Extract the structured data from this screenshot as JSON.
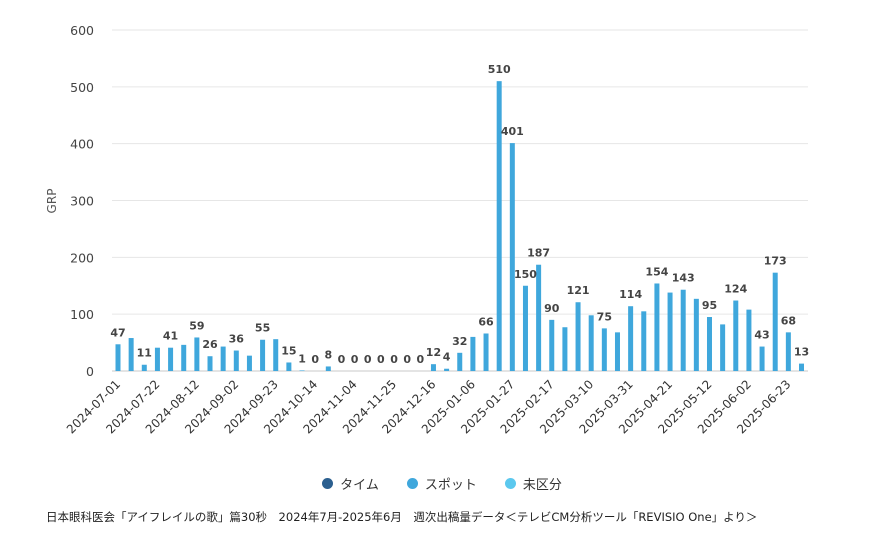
{
  "chart_data": {
    "type": "bar",
    "ylabel": "GRP",
    "ylim": [
      0,
      600
    ],
    "yticks": [
      0,
      100,
      200,
      300,
      400,
      500,
      600
    ],
    "categories": [
      "2024-07-01",
      "2024-07-08",
      "2024-07-15",
      "2024-07-22",
      "2024-07-29",
      "2024-08-05",
      "2024-08-12",
      "2024-08-19",
      "2024-08-26",
      "2024-09-02",
      "2024-09-09",
      "2024-09-16",
      "2024-09-23",
      "2024-09-30",
      "2024-10-07",
      "2024-10-14",
      "2024-10-21",
      "2024-10-28",
      "2024-11-04",
      "2024-11-11",
      "2024-11-18",
      "2024-11-25",
      "2024-12-02",
      "2024-12-09",
      "2024-12-16",
      "2024-12-23",
      "2024-12-30",
      "2025-01-06",
      "2025-01-13",
      "2025-01-20",
      "2025-01-27",
      "2025-02-03",
      "2025-02-10",
      "2025-02-17",
      "2025-02-24",
      "2025-03-03",
      "2025-03-10",
      "2025-03-17",
      "2025-03-24",
      "2025-03-31",
      "2025-04-07",
      "2025-04-14",
      "2025-04-21",
      "2025-04-28",
      "2025-05-05",
      "2025-05-12",
      "2025-05-19",
      "2025-05-26",
      "2025-06-02",
      "2025-06-09",
      "2025-06-16",
      "2025-06-23",
      "2025-06-30"
    ],
    "xtick_labels": [
      "2024-07-01",
      "2024-07-22",
      "2024-08-12",
      "2024-09-02",
      "2024-09-23",
      "2024-10-14",
      "2024-11-04",
      "2024-11-25",
      "2024-12-16",
      "2025-01-06",
      "2025-01-27",
      "2025-02-17",
      "2025-03-10",
      "2025-03-31",
      "2025-04-21",
      "2025-05-12",
      "2025-06-02",
      "2025-06-23"
    ],
    "series": [
      {
        "name": "タイム",
        "color": "#2b5f8f",
        "values": [
          0,
          0,
          0,
          0,
          0,
          0,
          0,
          0,
          0,
          0,
          0,
          0,
          0,
          0,
          0,
          0,
          0,
          0,
          0,
          0,
          0,
          0,
          0,
          0,
          0,
          0,
          0,
          0,
          0,
          0,
          0,
          0,
          0,
          0,
          0,
          0,
          0,
          0,
          0,
          0,
          0,
          0,
          0,
          0,
          0,
          0,
          0,
          0,
          0,
          0,
          0,
          0,
          0
        ]
      },
      {
        "name": "スポット",
        "color": "#3fa7dc",
        "values": [
          47,
          58,
          11,
          41,
          41,
          46,
          59,
          26,
          43,
          36,
          27,
          55,
          56,
          15,
          1,
          0,
          8,
          0,
          0,
          0,
          0,
          0,
          0,
          0,
          12,
          4,
          32,
          60,
          66,
          510,
          401,
          150,
          187,
          90,
          77,
          121,
          98,
          75,
          68,
          114,
          105,
          154,
          138,
          143,
          127,
          95,
          82,
          124,
          108,
          43,
          173,
          68,
          13
        ]
      },
      {
        "name": "未区分",
        "color": "#5bc8ee",
        "values": [
          0,
          0,
          0,
          0,
          0,
          0,
          0,
          0,
          0,
          0,
          0,
          0,
          0,
          0,
          0,
          0,
          0,
          0,
          0,
          0,
          0,
          0,
          0,
          0,
          0,
          0,
          0,
          0,
          0,
          0,
          0,
          0,
          0,
          0,
          0,
          0,
          0,
          0,
          0,
          0,
          0,
          0,
          0,
          0,
          0,
          0,
          0,
          0,
          0,
          0,
          0,
          0,
          0
        ]
      }
    ],
    "data_labels": [
      {
        "index": 0,
        "text": "47"
      },
      {
        "index": 2,
        "text": "11"
      },
      {
        "index": 4,
        "text": "41"
      },
      {
        "index": 6,
        "text": "59"
      },
      {
        "index": 7,
        "text": "26"
      },
      {
        "index": 9,
        "text": "36"
      },
      {
        "index": 11,
        "text": "55"
      },
      {
        "index": 13,
        "text": "15"
      },
      {
        "index": 14,
        "text": "1"
      },
      {
        "index": 15,
        "text": "0"
      },
      {
        "index": 16,
        "text": "8"
      },
      {
        "index": 17,
        "text": "0"
      },
      {
        "index": 18,
        "text": "0"
      },
      {
        "index": 19,
        "text": "0"
      },
      {
        "index": 20,
        "text": "0"
      },
      {
        "index": 21,
        "text": "0"
      },
      {
        "index": 22,
        "text": "0"
      },
      {
        "index": 23,
        "text": "0"
      },
      {
        "index": 24,
        "text": "12"
      },
      {
        "index": 25,
        "text": "4"
      },
      {
        "index": 26,
        "text": "32"
      },
      {
        "index": 28,
        "text": "66"
      },
      {
        "index": 29,
        "text": "510"
      },
      {
        "index": 30,
        "text": "401"
      },
      {
        "index": 31,
        "text": "150"
      },
      {
        "index": 32,
        "text": "187"
      },
      {
        "index": 33,
        "text": "90"
      },
      {
        "index": 35,
        "text": "121"
      },
      {
        "index": 37,
        "text": "75"
      },
      {
        "index": 39,
        "text": "114"
      },
      {
        "index": 41,
        "text": "154"
      },
      {
        "index": 43,
        "text": "143"
      },
      {
        "index": 45,
        "text": "95"
      },
      {
        "index": 47,
        "text": "124"
      },
      {
        "index": 49,
        "text": "43"
      },
      {
        "index": 50,
        "text": "173"
      },
      {
        "index": 51,
        "text": "68"
      },
      {
        "index": 52,
        "text": "13"
      }
    ],
    "legend_position": "bottom-center",
    "grid": true
  },
  "legend": {
    "items": [
      {
        "label": "タイム",
        "color": "#2b5f8f"
      },
      {
        "label": "スポット",
        "color": "#3fa7dc"
      },
      {
        "label": "未区分",
        "color": "#5bc8ee"
      }
    ]
  },
  "caption": "日本眼科医会「アイフレイルの歌」篇30秒　2024年7月-2025年6月　週次出稿量データ＜テレビCM分析ツール「REVISIO One」より＞"
}
